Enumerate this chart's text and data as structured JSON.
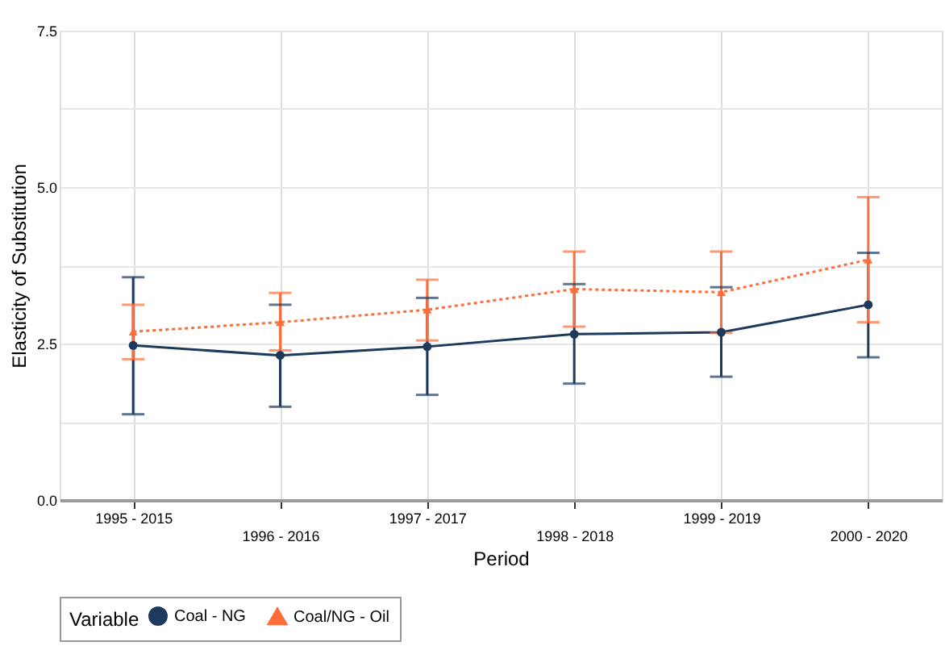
{
  "chart_data": {
    "type": "line",
    "xlabel": "Period",
    "ylabel": "Elasticity of Substitution",
    "legend_title": "Variable",
    "categories": [
      "1995 - 2015",
      "1996 - 2016",
      "1997 - 2017",
      "1998 - 2018",
      "1999 - 2019",
      "2000 - 2020"
    ],
    "series": [
      {
        "name": "Coal - NG",
        "color": "#1d3a5c",
        "marker": "circle",
        "line_style": "solid",
        "values": [
          2.47,
          2.31,
          2.45,
          2.65,
          2.68,
          3.12
        ],
        "errors": [
          [
            1.37,
            3.56
          ],
          [
            1.49,
            3.12
          ],
          [
            1.68,
            3.23
          ],
          [
            1.86,
            3.45
          ],
          [
            1.97,
            3.4
          ],
          [
            2.28,
            3.95
          ]
        ]
      },
      {
        "name": "Coal/NG - Oil",
        "color": "#ff6d3a",
        "marker": "triangle",
        "line_style": "dotted",
        "values": [
          2.69,
          2.84,
          3.04,
          3.37,
          3.32,
          3.84
        ],
        "errors": [
          [
            2.25,
            3.12
          ],
          [
            2.39,
            3.31
          ],
          [
            2.55,
            3.52
          ],
          [
            2.77,
            3.97
          ],
          [
            2.67,
            3.97
          ],
          [
            2.84,
            4.84
          ]
        ]
      }
    ],
    "ylim": [
      0,
      7.5
    ],
    "yticks": [
      {
        "value": 0,
        "label": "0.0"
      },
      {
        "value": 1.25,
        "label": null
      },
      {
        "value": 2.5,
        "label": "2.5"
      },
      {
        "value": 3.75,
        "label": null
      },
      {
        "value": 5,
        "label": "5.0"
      },
      {
        "value": 6.25,
        "label": null
      },
      {
        "value": 7.5,
        "label": "7.5"
      }
    ],
    "grid": true,
    "legend": "bottom"
  }
}
